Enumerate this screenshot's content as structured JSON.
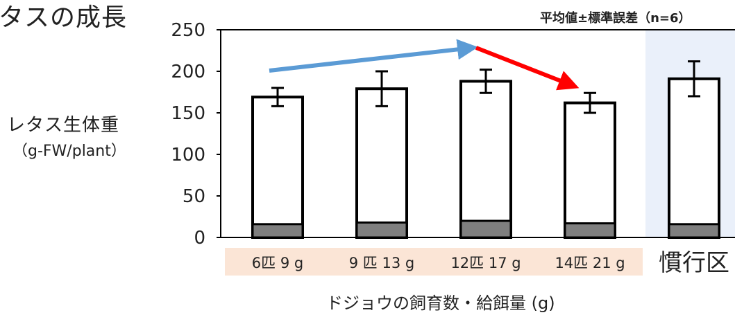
{
  "title": "タスの成長",
  "ylabel_line1": "レタス生体重",
  "ylabel_line2": "（g-FW/plant）",
  "note": "平均値±標準誤差（n=6）",
  "xlabel": "ドジョウの飼育数・給餌量 (g)",
  "colors": {
    "bar_fill": "#ffffff",
    "bar_base": "#7f7f7f",
    "highlight_bg": "#eaf0fa",
    "label_bg": "#fbe5d6",
    "arrow_up": "#5b9bd5",
    "arrow_down": "#ff0000"
  },
  "chart_data": {
    "type": "bar",
    "categories": [
      "6匹 9 g",
      "9 匹 13 g",
      "12匹 17 g",
      "14匹 21 g",
      "慣行区"
    ],
    "values": [
      169,
      179,
      188,
      162,
      191
    ],
    "errors": [
      11,
      21,
      14,
      12,
      21
    ],
    "base_values": [
      16,
      18,
      20,
      17,
      16
    ],
    "ylim": [
      0,
      250
    ],
    "yticks": [
      0,
      50,
      100,
      150,
      200,
      250
    ],
    "grid": false,
    "highlighted_category": "慣行区"
  }
}
